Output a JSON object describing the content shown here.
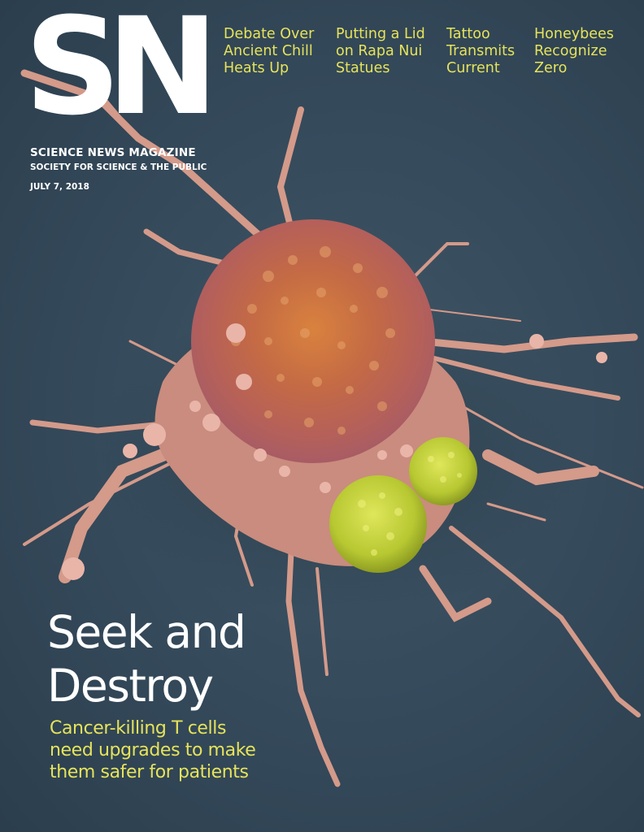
{
  "masthead": {
    "logo": "SN",
    "name": "SCIENCE NEWS MAGAZINE",
    "publisher": "SOCIETY FOR SCIENCE & THE PUBLIC",
    "date": "JULY 7, 2018"
  },
  "teasers": [
    {
      "lines": [
        "Debate Over",
        "Ancient Chill",
        "Heats Up"
      ]
    },
    {
      "lines": [
        "Putting a Lid",
        "on Rapa Nui",
        "Statues"
      ]
    },
    {
      "lines": [
        "Tattoo",
        "Transmits",
        "Current"
      ]
    },
    {
      "lines": [
        "Honeybees",
        "Recognize",
        "Zero"
      ]
    }
  ],
  "cover_story": {
    "headline_lines": [
      "Seek and",
      "Destroy"
    ],
    "subhead_lines": [
      "Cancer-killing T cells",
      "need upgrades to make",
      "them safer for patients"
    ]
  },
  "colors": {
    "background": "#34495a",
    "accent_yellow": "#e6e35a",
    "tumor_cell": "#c0704a",
    "t_cell": "#c4d43a",
    "text_white": "#ffffff"
  },
  "image": {
    "subject": "cancer-cell-and-t-cells-micrograph"
  }
}
